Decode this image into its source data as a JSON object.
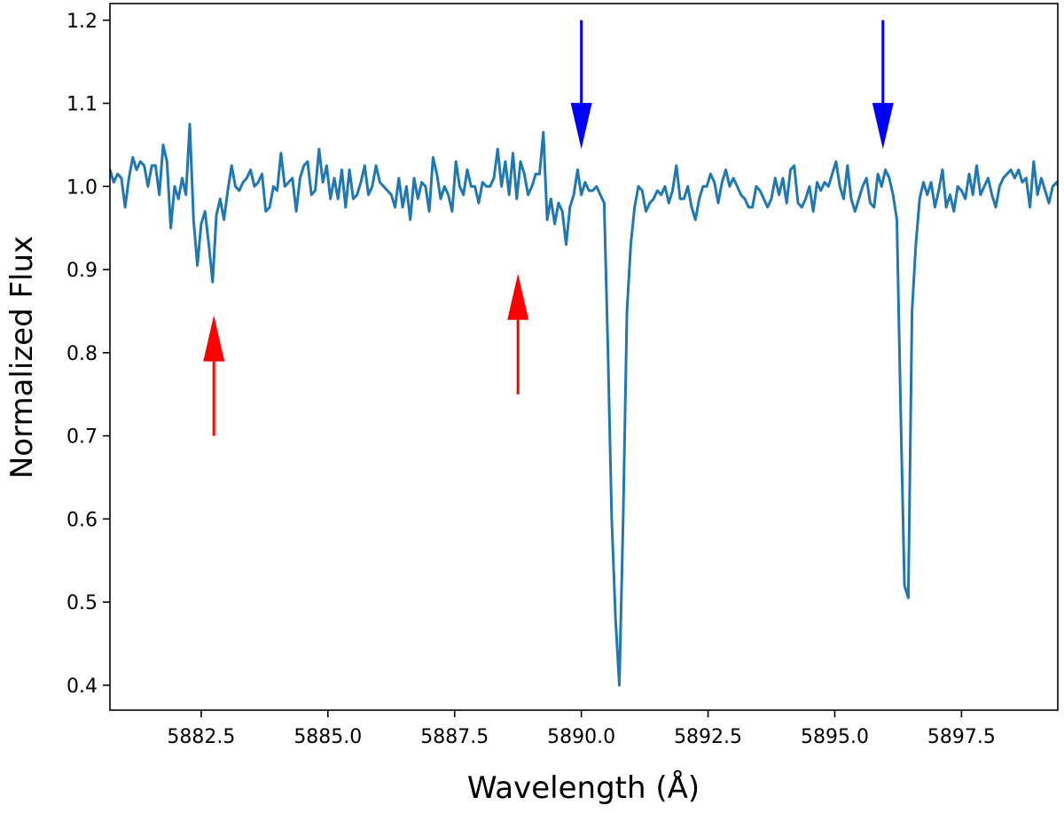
{
  "chart_data": {
    "type": "line",
    "title": "",
    "xlabel": "Wavelength (Å)",
    "ylabel": "Normalized Flux",
    "xlim": [
      5880.7,
      5899.4
    ],
    "ylim": [
      0.37,
      1.22
    ],
    "x_ticks": [
      5882.5,
      5885.0,
      5887.5,
      5890.0,
      5892.5,
      5895.0,
      5897.5
    ],
    "x_tick_labels": [
      "5882.5",
      "5885.0",
      "5887.5",
      "5890.0",
      "5892.5",
      "5895.0",
      "5897.5"
    ],
    "y_ticks": [
      0.4,
      0.5,
      0.6,
      0.7,
      0.8,
      0.9,
      1.0,
      1.1,
      1.2
    ],
    "y_tick_labels": [
      "0.4",
      "0.5",
      "0.6",
      "0.7",
      "0.8",
      "0.9",
      "1.0",
      "1.1",
      "1.2"
    ],
    "grid": false,
    "line_color": "#1f77b4",
    "series": [
      {
        "name": "spectrum",
        "x_start": 5880.7,
        "x_step": 0.075,
        "values": [
          1.02,
          1.005,
          1.015,
          1.01,
          0.975,
          1.01,
          1.035,
          1.02,
          1.03,
          1.025,
          1.0,
          1.025,
          1.025,
          0.99,
          1.05,
          1.03,
          0.95,
          1.0,
          0.985,
          1.01,
          0.99,
          1.075,
          0.96,
          0.905,
          0.955,
          0.97,
          0.93,
          0.885,
          0.965,
          0.985,
          0.96,
          0.995,
          1.025,
          1.0,
          0.995,
          1.005,
          1.01,
          1.02,
          1.0,
          1.005,
          1.015,
          0.97,
          0.975,
          1.0,
          0.995,
          1.04,
          1.0,
          1.005,
          1.01,
          0.97,
          1.01,
          1.025,
          1.03,
          0.99,
          0.995,
          1.045,
          1.005,
          1.025,
          0.985,
          1.01,
          0.985,
          1.02,
          0.975,
          1.02,
          0.985,
          0.99,
          1.005,
          1.025,
          0.99,
          1.0,
          1.025,
          1.005,
          1.0,
          0.995,
          0.99,
          0.975,
          1.01,
          0.975,
          1.0,
          0.96,
          1.01,
          0.985,
          1.005,
          1.0,
          0.97,
          1.035,
          1.015,
          0.985,
          1.0,
          0.99,
          0.97,
          1.03,
          1.0,
          0.99,
          1.02,
          1.0,
          1.0,
          0.98,
          1.005,
          1.0,
          1.0,
          1.01,
          1.045,
          1.0,
          1.03,
          0.99,
          1.04,
          0.985,
          1.03,
          1.015,
          0.99,
          1.0,
          1.015,
          1.015,
          1.065,
          0.96,
          0.985,
          0.955,
          0.98,
          0.97,
          0.93,
          0.975,
          0.99,
          1.02,
          0.99,
          1.005,
          0.995,
          0.995,
          1.0,
          0.99,
          0.98,
          0.8,
          0.6,
          0.48,
          0.4,
          0.6,
          0.85,
          0.93,
          0.975,
          1.0,
          0.995,
          0.97,
          0.98,
          0.985,
          0.995,
          0.99,
          1.0,
          0.98,
          0.995,
          1.025,
          0.985,
          0.985,
          1.0,
          0.975,
          0.96,
          0.985,
          1.0,
          1.0,
          1.015,
          1.005,
          0.98,
          1.005,
          1.02,
          1.0,
          1.01,
          1.0,
          0.99,
          0.985,
          0.975,
          0.975,
          1.0,
          0.995,
          0.985,
          0.975,
          0.985,
          1.01,
          0.99,
          1.01,
          0.98,
          1.02,
          1.025,
          0.98,
          0.975,
          0.985,
          1.0,
          0.97,
          1.005,
          0.995,
          1.005,
          1.0,
          1.015,
          1.03,
          1.0,
          0.985,
          1.025,
          0.985,
          0.97,
          0.985,
          1.0,
          1.01,
          0.98,
          0.975,
          1.015,
          1.0,
          1.02,
          1.01,
          0.99,
          0.96,
          0.73,
          0.52,
          0.505,
          0.85,
          0.93,
          0.985,
          1.005,
          0.99,
          1.005,
          0.975,
          0.995,
          1.02,
          0.975,
          0.99,
          0.97,
          1.0,
          0.995,
          0.985,
          1.015,
          0.99,
          1.025,
          0.99,
          1.0,
          1.01,
          0.99,
          0.975,
          1.0,
          1.01,
          1.015,
          1.02,
          1.01,
          1.02,
          1.005,
          1.01,
          0.975,
          1.03,
          0.99,
          1.01,
          0.995,
          0.98,
          1.0,
          1.005,
          0.995,
          0.985,
          1.02,
          0.985,
          0.97,
          1.02
        ]
      }
    ],
    "annotations": [
      {
        "kind": "arrow",
        "color": "#ff0000",
        "x": 5882.75,
        "y_tail": 0.7,
        "y_head": 0.845,
        "direction": "up"
      },
      {
        "kind": "arrow",
        "color": "#ff0000",
        "x": 5888.75,
        "y_tail": 0.75,
        "y_head": 0.895,
        "direction": "up"
      },
      {
        "kind": "arrow",
        "color": "#0000ff",
        "x": 5890.0,
        "y_tail": 1.2,
        "y_head": 1.045,
        "direction": "down"
      },
      {
        "kind": "arrow",
        "color": "#0000ff",
        "x": 5895.95,
        "y_tail": 1.2,
        "y_head": 1.045,
        "direction": "down"
      }
    ]
  }
}
